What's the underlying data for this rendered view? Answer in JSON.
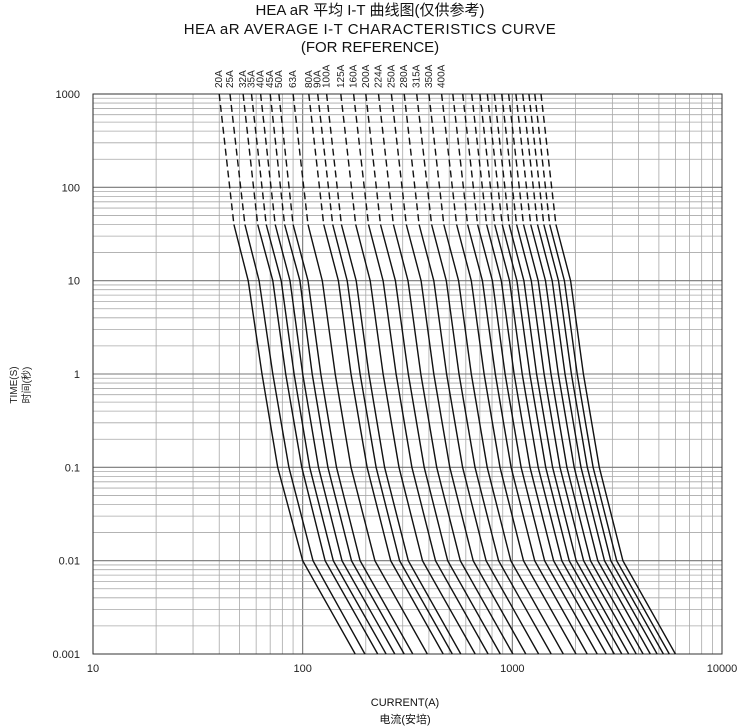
{
  "chart_data": {
    "type": "line",
    "title": "HEA aR 平均 I-T 曲线图(仅供参考)",
    "subtitle": "HEA aR AVERAGE I-T CHARACTERISTICS CURVE",
    "subtitle2": "(FOR REFERENCE)",
    "xlabel": "CURRENT(A)",
    "xlabel_cn": "电流(安培)",
    "ylabel": "TIME(S)",
    "ylabel_cn": "时间(秒)",
    "x_scale": "log",
    "y_scale": "log",
    "xlim": [
      10,
      10000
    ],
    "ylim": [
      0.001,
      1000
    ],
    "x_ticks": [
      "10",
      "100",
      "1000",
      "10000"
    ],
    "y_ticks": [
      "0.001",
      "0.01",
      "0.1",
      "1",
      "10",
      "100",
      "1000"
    ],
    "grid": true,
    "dashed_above_seconds": 40,
    "series": [
      {
        "name": "20A",
        "points": [
          [
            40,
            1000
          ],
          [
            47,
            40
          ],
          [
            55,
            10
          ],
          [
            64,
            1
          ],
          [
            76,
            0.1
          ],
          [
            100,
            0.01
          ],
          [
            178,
            0.001
          ]
        ]
      },
      {
        "name": "25A",
        "points": [
          [
            45,
            1000
          ],
          [
            53,
            40
          ],
          [
            62,
            10
          ],
          [
            72,
            1
          ],
          [
            86,
            0.1
          ],
          [
            112,
            0.01
          ],
          [
            198,
            0.001
          ]
        ]
      },
      {
        "name": "32A",
        "points": [
          [
            52,
            1000
          ],
          [
            61,
            40
          ],
          [
            72,
            10
          ],
          [
            83,
            1
          ],
          [
            99,
            0.1
          ],
          [
            128,
            0.01
          ],
          [
            228,
            0.001
          ]
        ]
      },
      {
        "name": "35A",
        "points": [
          [
            57,
            1000
          ],
          [
            67,
            40
          ],
          [
            79,
            10
          ],
          [
            91,
            1
          ],
          [
            108,
            0.1
          ],
          [
            140,
            0.01
          ],
          [
            250,
            0.001
          ]
        ]
      },
      {
        "name": "40A",
        "points": [
          [
            63,
            1000
          ],
          [
            74,
            40
          ],
          [
            87,
            10
          ],
          [
            100,
            1
          ],
          [
            119,
            0.1
          ],
          [
            154,
            0.01
          ],
          [
            275,
            0.001
          ]
        ]
      },
      {
        "name": "45A",
        "points": [
          [
            70,
            1000
          ],
          [
            82,
            40
          ],
          [
            97,
            10
          ],
          [
            111,
            1
          ],
          [
            132,
            0.1
          ],
          [
            171,
            0.01
          ],
          [
            305,
            0.001
          ]
        ]
      },
      {
        "name": "50A",
        "points": [
          [
            77,
            1000
          ],
          [
            90,
            40
          ],
          [
            106,
            10
          ],
          [
            122,
            1
          ],
          [
            145,
            0.1
          ],
          [
            188,
            0.01
          ],
          [
            335,
            0.001
          ]
        ]
      },
      {
        "name": "63A",
        "points": [
          [
            90,
            1000
          ],
          [
            106,
            40
          ],
          [
            124,
            10
          ],
          [
            143,
            1
          ],
          [
            170,
            0.1
          ],
          [
            221,
            0.01
          ],
          [
            393,
            0.001
          ]
        ]
      },
      {
        "name": "80A",
        "points": [
          [
            107,
            1000
          ],
          [
            126,
            40
          ],
          [
            148,
            10
          ],
          [
            170,
            1
          ],
          [
            203,
            0.1
          ],
          [
            263,
            0.01
          ],
          [
            468,
            0.001
          ]
        ]
      },
      {
        "name": "90A",
        "points": [
          [
            118,
            1000
          ],
          [
            139,
            40
          ],
          [
            163,
            10
          ],
          [
            188,
            1
          ],
          [
            224,
            0.1
          ],
          [
            290,
            0.01
          ],
          [
            517,
            0.001
          ]
        ]
      },
      {
        "name": "100A",
        "points": [
          [
            130,
            1000
          ],
          [
            153,
            40
          ],
          [
            180,
            10
          ],
          [
            207,
            1
          ],
          [
            246,
            0.1
          ],
          [
            319,
            0.01
          ],
          [
            568,
            0.001
          ]
        ]
      },
      {
        "name": "125A",
        "points": [
          [
            152,
            1000
          ],
          [
            179,
            40
          ],
          [
            210,
            10
          ],
          [
            242,
            1
          ],
          [
            288,
            0.1
          ],
          [
            373,
            0.01
          ],
          [
            665,
            0.001
          ]
        ]
      },
      {
        "name": "160A",
        "points": [
          [
            175,
            1000
          ],
          [
            206,
            40
          ],
          [
            242,
            10
          ],
          [
            279,
            1
          ],
          [
            332,
            0.1
          ],
          [
            430,
            0.01
          ],
          [
            766,
            0.001
          ]
        ]
      },
      {
        "name": "200A",
        "points": [
          [
            200,
            1000
          ],
          [
            235,
            40
          ],
          [
            277,
            10
          ],
          [
            319,
            1
          ],
          [
            380,
            0.1
          ],
          [
            492,
            0.01
          ],
          [
            876,
            0.001
          ]
        ]
      },
      {
        "name": "224A",
        "points": [
          [
            230,
            1000
          ],
          [
            271,
            40
          ],
          [
            318,
            10
          ],
          [
            366,
            1
          ],
          [
            436,
            0.1
          ],
          [
            565,
            0.01
          ],
          [
            1006,
            0.001
          ]
        ]
      },
      {
        "name": "250A",
        "points": [
          [
            265,
            1000
          ],
          [
            312,
            40
          ],
          [
            367,
            10
          ],
          [
            422,
            1
          ],
          [
            503,
            0.1
          ],
          [
            651,
            0.01
          ],
          [
            1160,
            0.001
          ]
        ]
      },
      {
        "name": "280A",
        "points": [
          [
            305,
            1000
          ],
          [
            359,
            40
          ],
          [
            422,
            10
          ],
          [
            486,
            1
          ],
          [
            579,
            0.1
          ],
          [
            750,
            0.01
          ],
          [
            1335,
            0.001
          ]
        ]
      },
      {
        "name": "315A",
        "points": [
          [
            350,
            1000
          ],
          [
            412,
            40
          ],
          [
            484,
            10
          ],
          [
            557,
            1
          ],
          [
            664,
            0.1
          ],
          [
            860,
            0.01
          ],
          [
            1532,
            0.001
          ]
        ]
      },
      {
        "name": "350A",
        "points": [
          [
            400,
            1000
          ],
          [
            471,
            40
          ],
          [
            554,
            10
          ],
          [
            637,
            1
          ],
          [
            759,
            0.1
          ],
          [
            983,
            0.01
          ],
          [
            1751,
            0.001
          ]
        ]
      },
      {
        "name": "400A",
        "points": [
          [
            460,
            1000
          ],
          [
            542,
            40
          ],
          [
            637,
            10
          ],
          [
            733,
            1
          ],
          [
            873,
            0.1
          ],
          [
            1131,
            0.01
          ],
          [
            2013,
            0.001
          ]
        ]
      },
      {
        "name": "",
        "points": [
          [
            520,
            1000
          ],
          [
            612,
            40
          ],
          [
            720,
            10
          ],
          [
            829,
            1
          ],
          [
            987,
            0.1
          ],
          [
            1279,
            0.01
          ],
          [
            2276,
            0.001
          ]
        ]
      },
      {
        "name": "",
        "points": [
          [
            580,
            1000
          ],
          [
            683,
            40
          ],
          [
            803,
            10
          ],
          [
            924,
            1
          ],
          [
            1101,
            0.1
          ],
          [
            1426,
            0.01
          ],
          [
            2539,
            0.001
          ]
        ]
      },
      {
        "name": "",
        "points": [
          [
            640,
            1000
          ],
          [
            754,
            40
          ],
          [
            886,
            10
          ],
          [
            1020,
            1
          ],
          [
            1214,
            0.1
          ],
          [
            1574,
            0.01
          ],
          [
            2802,
            0.001
          ]
        ]
      },
      {
        "name": "",
        "points": [
          [
            700,
            1000
          ],
          [
            824,
            40
          ],
          [
            969,
            10
          ],
          [
            1115,
            1
          ],
          [
            1328,
            0.1
          ],
          [
            1721,
            0.01
          ],
          [
            3064,
            0.001
          ]
        ]
      },
      {
        "name": "",
        "points": [
          [
            760,
            1000
          ],
          [
            895,
            40
          ],
          [
            1052,
            10
          ],
          [
            1211,
            1
          ],
          [
            1442,
            0.1
          ],
          [
            1868,
            0.01
          ],
          [
            3327,
            0.001
          ]
        ]
      },
      {
        "name": "",
        "points": [
          [
            820,
            1000
          ],
          [
            965,
            40
          ],
          [
            1135,
            10
          ],
          [
            1306,
            1
          ],
          [
            1556,
            0.1
          ],
          [
            2016,
            0.01
          ],
          [
            3589,
            0.001
          ]
        ]
      },
      {
        "name": "",
        "points": [
          [
            890,
            1000
          ],
          [
            1048,
            40
          ],
          [
            1232,
            10
          ],
          [
            1418,
            1
          ],
          [
            1688,
            0.1
          ],
          [
            2188,
            0.01
          ],
          [
            3896,
            0.001
          ]
        ]
      },
      {
        "name": "",
        "points": [
          [
            960,
            1000
          ],
          [
            1130,
            40
          ],
          [
            1329,
            10
          ],
          [
            1529,
            1
          ],
          [
            1821,
            0.1
          ],
          [
            2360,
            0.01
          ],
          [
            4202,
            0.001
          ]
        ]
      },
      {
        "name": "",
        "points": [
          [
            1040,
            1000
          ],
          [
            1224,
            40
          ],
          [
            1440,
            10
          ],
          [
            1657,
            1
          ],
          [
            1973,
            0.1
          ],
          [
            2556,
            0.01
          ],
          [
            4552,
            0.001
          ]
        ]
      },
      {
        "name": "",
        "points": [
          [
            1120,
            1000
          ],
          [
            1319,
            40
          ],
          [
            1550,
            10
          ],
          [
            1784,
            1
          ],
          [
            2125,
            0.1
          ],
          [
            2753,
            0.01
          ],
          [
            4903,
            0.001
          ]
        ]
      },
      {
        "name": "",
        "points": [
          [
            1200,
            1000
          ],
          [
            1413,
            40
          ],
          [
            1661,
            10
          ],
          [
            1912,
            1
          ],
          [
            2277,
            0.1
          ],
          [
            2950,
            0.01
          ],
          [
            5253,
            0.001
          ]
        ]
      },
      {
        "name": "",
        "points": [
          [
            1280,
            1000
          ],
          [
            1507,
            40
          ],
          [
            1772,
            10
          ],
          [
            2039,
            1
          ],
          [
            2428,
            0.1
          ],
          [
            3146,
            0.01
          ],
          [
            5603,
            0.001
          ]
        ]
      },
      {
        "name": "",
        "points": [
          [
            1370,
            1000
          ],
          [
            1613,
            40
          ],
          [
            1896,
            10
          ],
          [
            2183,
            1
          ],
          [
            2599,
            0.1
          ],
          [
            3367,
            0.01
          ],
          [
            5997,
            0.001
          ]
        ]
      }
    ],
    "top_labels": [
      "20A",
      "25A",
      "32A",
      "35A",
      "40A",
      "45A",
      "50A",
      "63A",
      "80A",
      "90A",
      "100A",
      "125A",
      "160A",
      "200A",
      "224A",
      "250A",
      "280A",
      "315A",
      "350A",
      "400A"
    ]
  }
}
